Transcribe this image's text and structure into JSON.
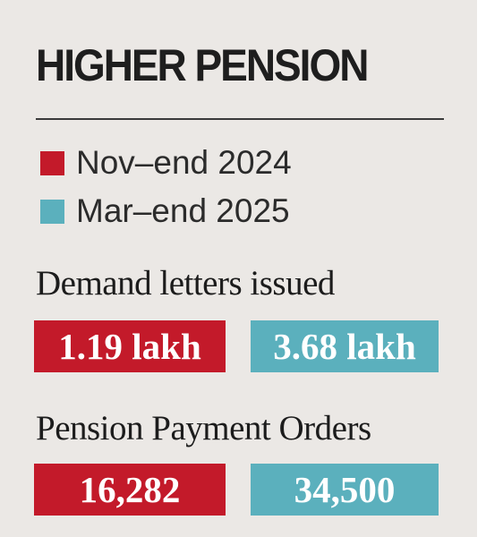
{
  "chart_data": {
    "type": "table",
    "title": "HIGHER PENSION",
    "colors": {
      "series_1": "#c31a2a",
      "series_2": "#5bb0bd"
    },
    "series": [
      {
        "name": "Nov–end 2024",
        "values": [
          "1.19 lakh",
          "16,282"
        ]
      },
      {
        "name": "Mar–end 2025",
        "values": [
          "3.68 lakh",
          "34,500"
        ]
      }
    ],
    "categories": [
      "Demand letters issued",
      "Pension Payment Orders"
    ]
  }
}
